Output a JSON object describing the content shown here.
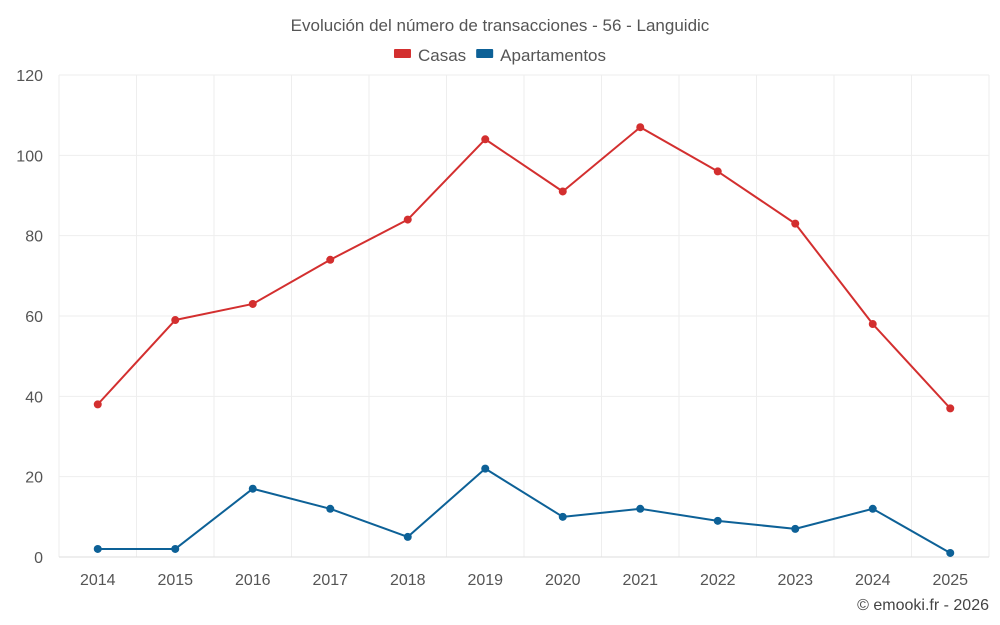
{
  "chart_data": {
    "type": "line",
    "title": "Evolución del número de transacciones - 56 - Languidic",
    "categories": [
      "2014",
      "2015",
      "2016",
      "2017",
      "2018",
      "2019",
      "2020",
      "2021",
      "2022",
      "2023",
      "2024",
      "2025"
    ],
    "series": [
      {
        "name": "Casas",
        "color": "#d32f2f",
        "values": [
          38,
          59,
          63,
          74,
          84,
          104,
          91,
          107,
          96,
          83,
          58,
          37
        ]
      },
      {
        "name": "Apartamentos",
        "color": "#0d6197",
        "values": [
          2,
          2,
          17,
          12,
          5,
          22,
          10,
          12,
          9,
          7,
          12,
          1
        ]
      }
    ],
    "ylim": [
      0,
      120
    ],
    "yticks": [
      0,
      20,
      40,
      60,
      80,
      100,
      120
    ],
    "xlabel": "",
    "ylabel": "",
    "grid": true,
    "legend": "top-center"
  },
  "credit": "© emooki.fr - 2026"
}
